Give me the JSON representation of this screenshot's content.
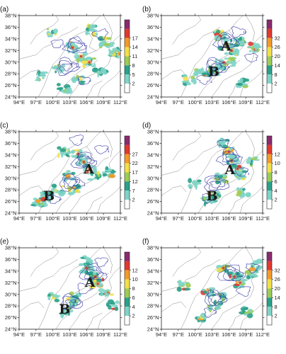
{
  "figure": {
    "lon_ticks": [
      "94°E",
      "97°E",
      "100°E",
      "103°E",
      "106°E",
      "109°E",
      "112°E"
    ],
    "lat_ticks": [
      "24°N",
      "26°N",
      "28°N",
      "30°N",
      "32°N",
      "34°N",
      "36°N",
      "38°N"
    ],
    "lon_values": [
      94,
      97,
      100,
      103,
      106,
      109,
      112
    ],
    "lat_values": [
      24,
      26,
      28,
      30,
      32,
      34,
      36,
      38
    ],
    "colors": {
      "contour": "#3a3aa8",
      "boundary": "#888888",
      "scale": [
        "#ffffff",
        "#7fd4c6",
        "#2aa08a",
        "#9ccc55",
        "#f2e04a",
        "#f29a2a",
        "#e0392f",
        "#8a2a6e"
      ]
    },
    "panels": [
      {
        "label": "(a)",
        "colorbar": [
          "2",
          "5",
          "8",
          "11",
          "14",
          "17"
        ],
        "regions": [],
        "contour_labels": [
          "4",
          "8",
          "4",
          "8"
        ]
      },
      {
        "label": "(b)",
        "colorbar": [
          "2",
          "8",
          "14",
          "20",
          "26",
          "32"
        ],
        "regions": [
          {
            "text": "A",
            "lon": 105.5,
            "lat": 32.6
          },
          {
            "text": "B",
            "lon": 103.3,
            "lat": 28.2
          }
        ],
        "contour_labels": [
          "4",
          "8",
          "12",
          "4"
        ]
      },
      {
        "label": "(c)",
        "colorbar": [
          "2",
          "7",
          "12",
          "17",
          "22",
          "27"
        ],
        "regions": [
          {
            "text": "A",
            "lon": 106.4,
            "lat": 31.4
          },
          {
            "text": "B",
            "lon": 99.3,
            "lat": 26.8
          }
        ],
        "contour_labels": [
          "8",
          "12",
          "4",
          "4"
        ]
      },
      {
        "label": "(d)",
        "colorbar": [
          "2",
          "4",
          "6",
          "8",
          "10",
          "12"
        ],
        "regions": [
          {
            "text": "A",
            "lon": 106.2,
            "lat": 31.3
          },
          {
            "text": "B",
            "lon": 103.0,
            "lat": 26.8
          }
        ],
        "contour_labels": [
          "4",
          "8",
          "12",
          "4"
        ]
      },
      {
        "label": "(e)",
        "colorbar": [
          "2",
          "4",
          "6",
          "8",
          "10",
          "12"
        ],
        "regions": [
          {
            "text": "A",
            "lon": 106.6,
            "lat": 31.9
          },
          {
            "text": "B",
            "lon": 102.1,
            "lat": 27.3
          }
        ],
        "contour_labels": [
          "4",
          "8",
          "4"
        ]
      },
      {
        "label": "(f)",
        "colorbar": [
          "2",
          "8",
          "14",
          "20",
          "26",
          "32"
        ],
        "regions": [],
        "contour_labels": [
          "4",
          "8",
          "4"
        ]
      }
    ]
  }
}
